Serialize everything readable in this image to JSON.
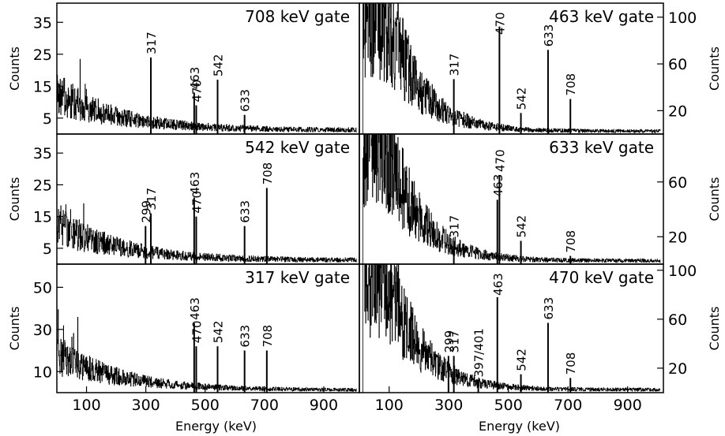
{
  "chart_data": [
    {
      "type": "line",
      "title": "708 keV gate",
      "xlabel": "",
      "ylabel": "Counts",
      "xlim": [
        0,
        1020
      ],
      "ylim": [
        0,
        41
      ],
      "yticks": [
        5,
        15,
        25,
        35
      ],
      "xticks": [],
      "yaxis_side": "left",
      "peaks": [
        {
          "label": "317",
          "x": 317,
          "y": 24
        },
        {
          "label": "463",
          "x": 463,
          "y": 13
        },
        {
          "label": "470",
          "x": 470,
          "y": 9
        },
        {
          "label": "542",
          "x": 542,
          "y": 17
        },
        {
          "label": "633",
          "x": 633,
          "y": 6
        }
      ]
    },
    {
      "type": "line",
      "title": "463 keV gate",
      "xlabel": "",
      "ylabel": "Counts",
      "xlim": [
        0,
        1020
      ],
      "ylim": [
        0,
        112
      ],
      "yticks": [
        20,
        60,
        100
      ],
      "xticks": [],
      "yaxis_side": "right",
      "peaks": [
        {
          "label": "317",
          "x": 317,
          "y": 47
        },
        {
          "label": "470",
          "x": 470,
          "y": 92
        },
        {
          "label": "542",
          "x": 542,
          "y": 18
        },
        {
          "label": "633",
          "x": 633,
          "y": 72
        },
        {
          "label": "708",
          "x": 708,
          "y": 30
        }
      ]
    },
    {
      "type": "line",
      "title": "542 keV gate",
      "xlabel": "",
      "ylabel": "Counts",
      "xlim": [
        0,
        1020
      ],
      "ylim": [
        0,
        41
      ],
      "yticks": [
        5,
        15,
        25,
        35
      ],
      "xticks": [],
      "yaxis_side": "left",
      "peaks": [
        {
          "label": "299",
          "x": 299,
          "y": 12
        },
        {
          "label": "317",
          "x": 317,
          "y": 16
        },
        {
          "label": "463",
          "x": 463,
          "y": 21
        },
        {
          "label": "470",
          "x": 470,
          "y": 15
        },
        {
          "label": "633",
          "x": 633,
          "y": 12
        },
        {
          "label": "708",
          "x": 708,
          "y": 24
        }
      ]
    },
    {
      "type": "line",
      "title": "633 keV gate",
      "xlabel": "",
      "ylabel": "Counts",
      "xlim": [
        0,
        1020
      ],
      "ylim": [
        0,
        95
      ],
      "yticks": [
        20,
        60
      ],
      "xticks": [],
      "yaxis_side": "right",
      "peaks": [
        {
          "label": "317",
          "x": 317,
          "y": 17
        },
        {
          "label": "463",
          "x": 463,
          "y": 47
        },
        {
          "label": "470",
          "x": 470,
          "y": 65
        },
        {
          "label": "542",
          "x": 542,
          "y": 17
        },
        {
          "label": "708",
          "x": 708,
          "y": 6
        }
      ]
    },
    {
      "type": "line",
      "title": "317 keV gate",
      "xlabel": "Energy (keV)",
      "ylabel": "Counts",
      "xlim": [
        0,
        1020
      ],
      "ylim": [
        0,
        61
      ],
      "yticks": [
        10,
        30,
        50
      ],
      "xticks": [
        100,
        300,
        500,
        700,
        900
      ],
      "yaxis_side": "left",
      "peaks": [
        {
          "label": "463",
          "x": 463,
          "y": 33
        },
        {
          "label": "470",
          "x": 470,
          "y": 22
        },
        {
          "label": "542",
          "x": 542,
          "y": 22
        },
        {
          "label": "633",
          "x": 633,
          "y": 20
        },
        {
          "label": "708",
          "x": 708,
          "y": 20
        }
      ]
    },
    {
      "type": "line",
      "title": "470 keV gate",
      "xlabel": "Energy (keV)",
      "ylabel": "Counts",
      "xlim": [
        0,
        1020
      ],
      "ylim": [
        0,
        105
      ],
      "yticks": [
        20,
        60,
        100
      ],
      "xticks": [
        100,
        300,
        500,
        700,
        900
      ],
      "yaxis_side": "right",
      "peaks": [
        {
          "label": "299",
          "x": 299,
          "y": 30
        },
        {
          "label": "317",
          "x": 317,
          "y": 30
        },
        {
          "label": "397/401",
          "x": 399,
          "y": 10
        },
        {
          "label": "463",
          "x": 463,
          "y": 78
        },
        {
          "label": "542",
          "x": 542,
          "y": 15
        },
        {
          "label": "633",
          "x": 633,
          "y": 57
        },
        {
          "label": "708",
          "x": 708,
          "y": 12
        }
      ]
    }
  ]
}
